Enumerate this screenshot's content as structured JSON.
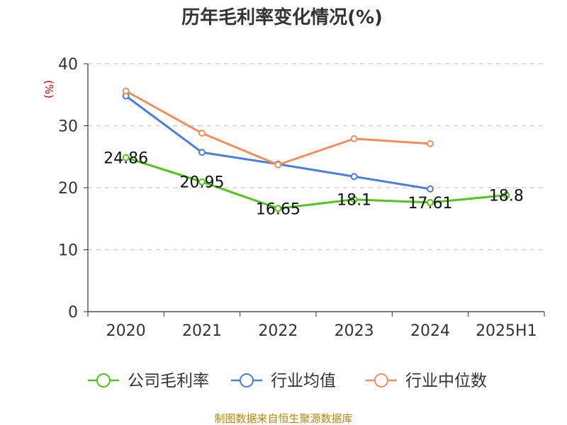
{
  "chart_data": {
    "type": "line",
    "title": "历年毛利率变化情况(%)",
    "ylabel": "(%)",
    "categories": [
      "2020",
      "2021",
      "2022",
      "2023",
      "2024",
      "2025H1"
    ],
    "yticks": [
      "0",
      "10",
      "20",
      "30",
      "40"
    ],
    "ylim": [
      0,
      40
    ],
    "grid": true,
    "legend_position": "bottom",
    "series": [
      {
        "name": "公司毛利率",
        "color": "#52c41a",
        "values": [
          24.86,
          20.95,
          16.65,
          18.1,
          17.61,
          18.8
        ],
        "labels": [
          "24.86",
          "20.95",
          "16.65",
          "18.1",
          "17.61",
          "18.8"
        ]
      },
      {
        "name": "行业均值",
        "color": "#4a7fdc",
        "values": [
          34.8,
          25.7,
          23.8,
          21.8,
          19.8,
          null
        ]
      },
      {
        "name": "行业中位数",
        "color": "#f58d5b",
        "values": [
          35.6,
          28.8,
          23.7,
          27.9,
          27.1,
          null
        ]
      }
    ]
  },
  "source": "制图数据来自恒生聚源数据库"
}
